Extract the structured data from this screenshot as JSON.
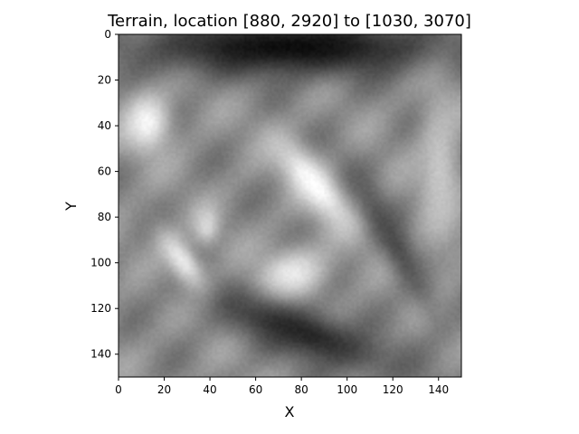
{
  "chart_data": {
    "type": "heatmap",
    "title": "Terrain, location [880, 2920] to [1030, 3070]",
    "xlabel": "X",
    "ylabel": "Y",
    "xlim": [
      0,
      150
    ],
    "ylim": [
      150,
      0
    ],
    "x_ticks": [
      "0",
      "20",
      "40",
      "60",
      "80",
      "100",
      "120",
      "140"
    ],
    "y_ticks": [
      "0",
      "20",
      "40",
      "60",
      "80",
      "100",
      "120",
      "140"
    ],
    "colormap": "gray",
    "grid": false,
    "features": [
      {
        "kind": "dark",
        "x": 75,
        "y": 5,
        "rx": 75,
        "ry": 14,
        "angle": 0,
        "v": 0.05
      },
      {
        "kind": "bright",
        "x": 12,
        "y": 38,
        "rx": 11,
        "ry": 14,
        "angle": 0,
        "v": 0.97
      },
      {
        "kind": "bright",
        "x": 85,
        "y": 65,
        "rx": 9,
        "ry": 26,
        "angle": -40,
        "v": 1.0
      },
      {
        "kind": "bright",
        "x": 28,
        "y": 100,
        "rx": 7,
        "ry": 18,
        "angle": -35,
        "v": 0.95
      },
      {
        "kind": "bright",
        "x": 75,
        "y": 105,
        "rx": 17,
        "ry": 12,
        "angle": -20,
        "v": 0.93
      },
      {
        "kind": "bright",
        "x": 38,
        "y": 83,
        "rx": 6,
        "ry": 9,
        "angle": 0,
        "v": 0.85
      },
      {
        "kind": "dark",
        "x": 80,
        "y": 130,
        "rx": 45,
        "ry": 12,
        "angle": 20,
        "v": 0.15
      },
      {
        "kind": "dark",
        "x": 120,
        "y": 90,
        "rx": 8,
        "ry": 40,
        "angle": -30,
        "v": 0.3
      },
      {
        "kind": "bright",
        "x": 140,
        "y": 60,
        "rx": 10,
        "ry": 40,
        "angle": 0,
        "v": 0.78
      }
    ]
  }
}
